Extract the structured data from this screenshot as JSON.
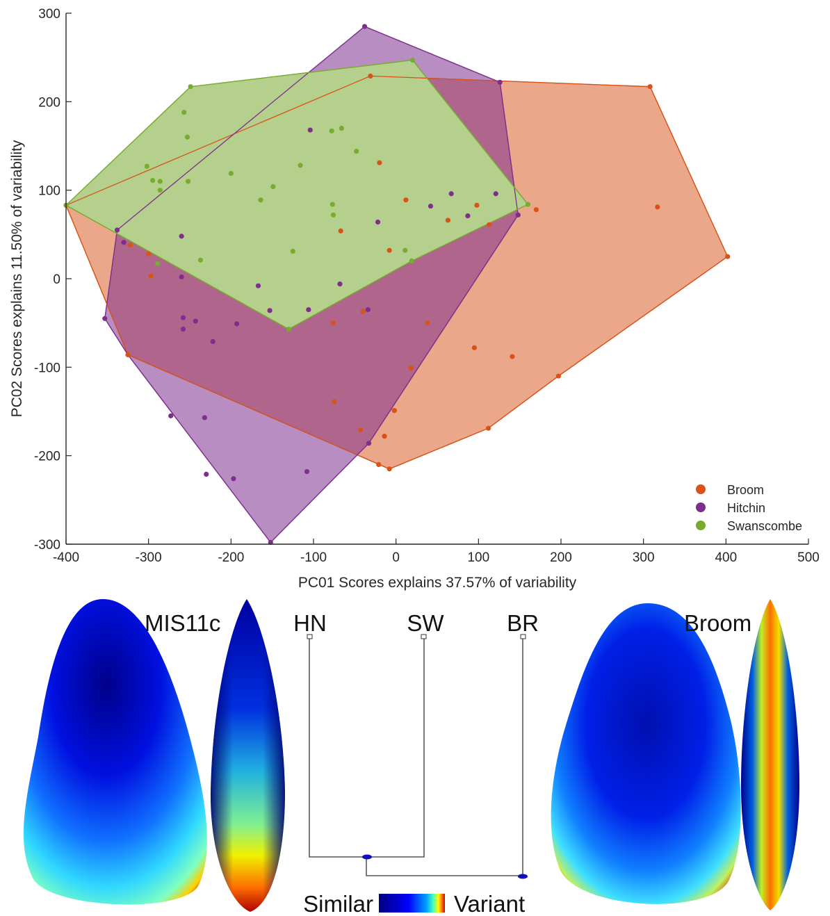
{
  "chart_data": {
    "type": "scatter",
    "xlabel": "PC01 Scores explains 37.57% of variability",
    "ylabel": "PC02 Scores explains 11.50% of variability",
    "xlim": [
      -400,
      500
    ],
    "ylim": [
      -300,
      300
    ],
    "xticks": [
      -400,
      -300,
      -200,
      -100,
      0,
      100,
      200,
      300,
      400,
      500
    ],
    "yticks": [
      -300,
      -200,
      -100,
      0,
      100,
      200,
      300
    ],
    "grid": false,
    "legend": "bottom-right",
    "series": [
      {
        "name": "Broom",
        "color": "#D95319",
        "fill": "#EAA78A",
        "points": [
          [
            -400,
            83
          ],
          [
            -322,
            38
          ],
          [
            -300,
            28
          ],
          [
            -297,
            3
          ],
          [
            -325,
            -86
          ],
          [
            -31,
            229
          ],
          [
            -20,
            131
          ],
          [
            12,
            89
          ],
          [
            -67,
            54
          ],
          [
            -8,
            32
          ],
          [
            -76,
            -50
          ],
          [
            -40,
            -37
          ],
          [
            38,
            -50
          ],
          [
            95,
            -78
          ],
          [
            141,
            -88
          ],
          [
            197,
            -110
          ],
          [
            112,
            -169
          ],
          [
            -75,
            -139
          ],
          [
            -43,
            -171
          ],
          [
            -14,
            -178
          ],
          [
            -2,
            -149
          ],
          [
            -8,
            -215
          ],
          [
            -21,
            -210
          ],
          [
            -2,
            -149
          ],
          [
            18,
            -101
          ],
          [
            98,
            83
          ],
          [
            113,
            61
          ],
          [
            63,
            66
          ],
          [
            170,
            78
          ],
          [
            308,
            217
          ],
          [
            317,
            81
          ],
          [
            402,
            25
          ]
        ],
        "hull": [
          [
            -400,
            83
          ],
          [
            -31,
            229
          ],
          [
            308,
            217
          ],
          [
            402,
            25
          ],
          [
            197,
            -110
          ],
          [
            112,
            -169
          ],
          [
            -8,
            -215
          ],
          [
            -325,
            -86
          ]
        ]
      },
      {
        "name": "Hitchin",
        "color": "#7E2F8E",
        "points": [
          [
            -38,
            285
          ],
          [
            126,
            222
          ],
          [
            148,
            72
          ],
          [
            -338,
            55
          ],
          [
            -330,
            41
          ],
          [
            -353,
            -45
          ],
          [
            -273,
            -155
          ],
          [
            -232,
            -157
          ],
          [
            -230,
            -221
          ],
          [
            -152,
            -298
          ],
          [
            -197,
            -226
          ],
          [
            -108,
            -218
          ],
          [
            -33,
            -186
          ],
          [
            -260,
            48
          ],
          [
            -260,
            2
          ],
          [
            -258,
            -44
          ],
          [
            -258,
            -57
          ],
          [
            -243,
            -48
          ],
          [
            -222,
            -71
          ],
          [
            -193,
            -51
          ],
          [
            -167,
            -8
          ],
          [
            -153,
            -36
          ],
          [
            -106,
            -35
          ],
          [
            -104,
            168
          ],
          [
            -68,
            -6
          ],
          [
            -34,
            -35
          ],
          [
            -22,
            64
          ],
          [
            42,
            82
          ],
          [
            67,
            96
          ],
          [
            87,
            71
          ],
          [
            121,
            96
          ]
        ],
        "hull": [
          [
            -38,
            285
          ],
          [
            126,
            222
          ],
          [
            148,
            72
          ],
          [
            -33,
            -186
          ],
          [
            -152,
            -298
          ],
          [
            -325,
            -86
          ],
          [
            -353,
            -45
          ],
          [
            -338,
            55
          ]
        ]
      },
      {
        "name": "Swanscombe",
        "color": "#77AC30",
        "fill": "#B5D08D",
        "points": [
          [
            -400,
            83
          ],
          [
            -249,
            217
          ],
          [
            20,
            247
          ],
          [
            160,
            84
          ],
          [
            -302,
            127
          ],
          [
            -295,
            111
          ],
          [
            -286,
            100
          ],
          [
            -286,
            110
          ],
          [
            -257,
            188
          ],
          [
            -253,
            160
          ],
          [
            -252,
            110
          ],
          [
            -289,
            17
          ],
          [
            -237,
            21
          ],
          [
            -200,
            119
          ],
          [
            -164,
            89
          ],
          [
            -149,
            104
          ],
          [
            -125,
            31
          ],
          [
            -116,
            128
          ],
          [
            -130,
            -57
          ],
          [
            -77,
            84
          ],
          [
            -76,
            72
          ],
          [
            -78,
            167
          ],
          [
            -66,
            170
          ],
          [
            -48,
            144
          ],
          [
            11,
            32
          ],
          [
            19,
            20
          ]
        ],
        "hull": [
          [
            -400,
            83
          ],
          [
            -249,
            217
          ],
          [
            20,
            247
          ],
          [
            160,
            84
          ],
          [
            19,
            20
          ],
          [
            -130,
            -57
          ]
        ]
      }
    ],
    "legend_entries": [
      "Broom",
      "Hitchin",
      "Swanscombe"
    ]
  },
  "bottom_panel": {
    "left_label": "MIS11c",
    "right_label": "Broom",
    "dendrogram_labels": [
      "HN",
      "SW",
      "BR"
    ],
    "colorbar_left": "Similar",
    "colorbar_right": "Variant",
    "colorbar_colors": [
      "#00007F",
      "#0000FF",
      "#00A0FF",
      "#40FFC0",
      "#FFFF00",
      "#FF8000",
      "#D00000"
    ]
  }
}
